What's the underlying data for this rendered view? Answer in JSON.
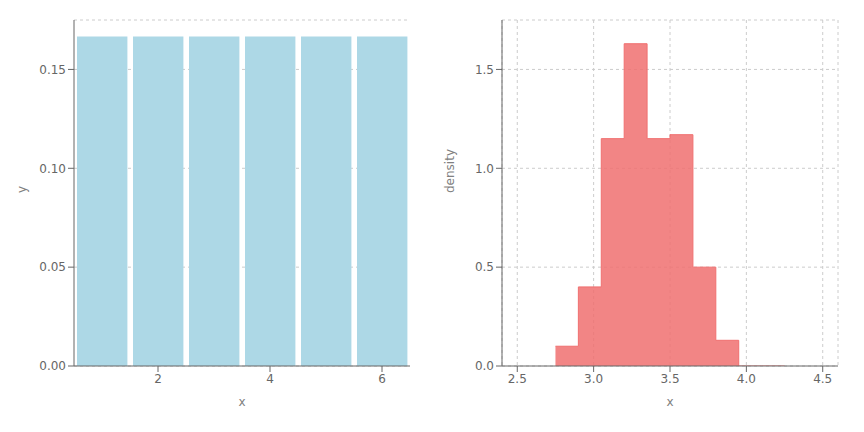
{
  "chart_data": [
    {
      "type": "bar",
      "x": [
        1,
        2,
        3,
        4,
        5,
        6
      ],
      "values": [
        0.16667,
        0.16667,
        0.16667,
        0.16667,
        0.16667,
        0.16667
      ],
      "color": "#add8e6",
      "xlabel": "x",
      "ylabel": "y",
      "xlim": [
        0.5,
        6.5
      ],
      "ylim": [
        0,
        0.175
      ],
      "xticks": [
        2,
        4,
        6
      ],
      "yticks": [
        {
          "value": 0,
          "label": "0.00"
        },
        {
          "value": 0.05,
          "label": "0.05"
        },
        {
          "value": 0.1,
          "label": "0.10"
        },
        {
          "value": 0.15,
          "label": "0.15"
        }
      ],
      "grid": "y"
    },
    {
      "type": "histogram",
      "bins": [
        2.75,
        2.9,
        3.05,
        3.2,
        3.35,
        3.5,
        3.65,
        3.8,
        3.95,
        4.1,
        4.25
      ],
      "values": [
        0.1,
        0.4,
        1.15,
        1.63,
        1.15,
        1.17,
        0.5,
        0.13,
        0.0,
        0.0
      ],
      "color": "#f07070",
      "xlabel": "x",
      "ylabel": "density",
      "xlim": [
        2.4,
        4.6
      ],
      "ylim": [
        0,
        1.75
      ],
      "xticks": [
        2.5,
        {
          "value": 3,
          "label": "3.0"
        },
        3.5,
        {
          "value": 4,
          "label": "4.0"
        },
        4.5
      ],
      "yticks": [
        {
          "value": 0,
          "label": "0.0"
        },
        0.5,
        {
          "value": 1,
          "label": "1.0"
        },
        1.5
      ],
      "grid": true
    }
  ]
}
